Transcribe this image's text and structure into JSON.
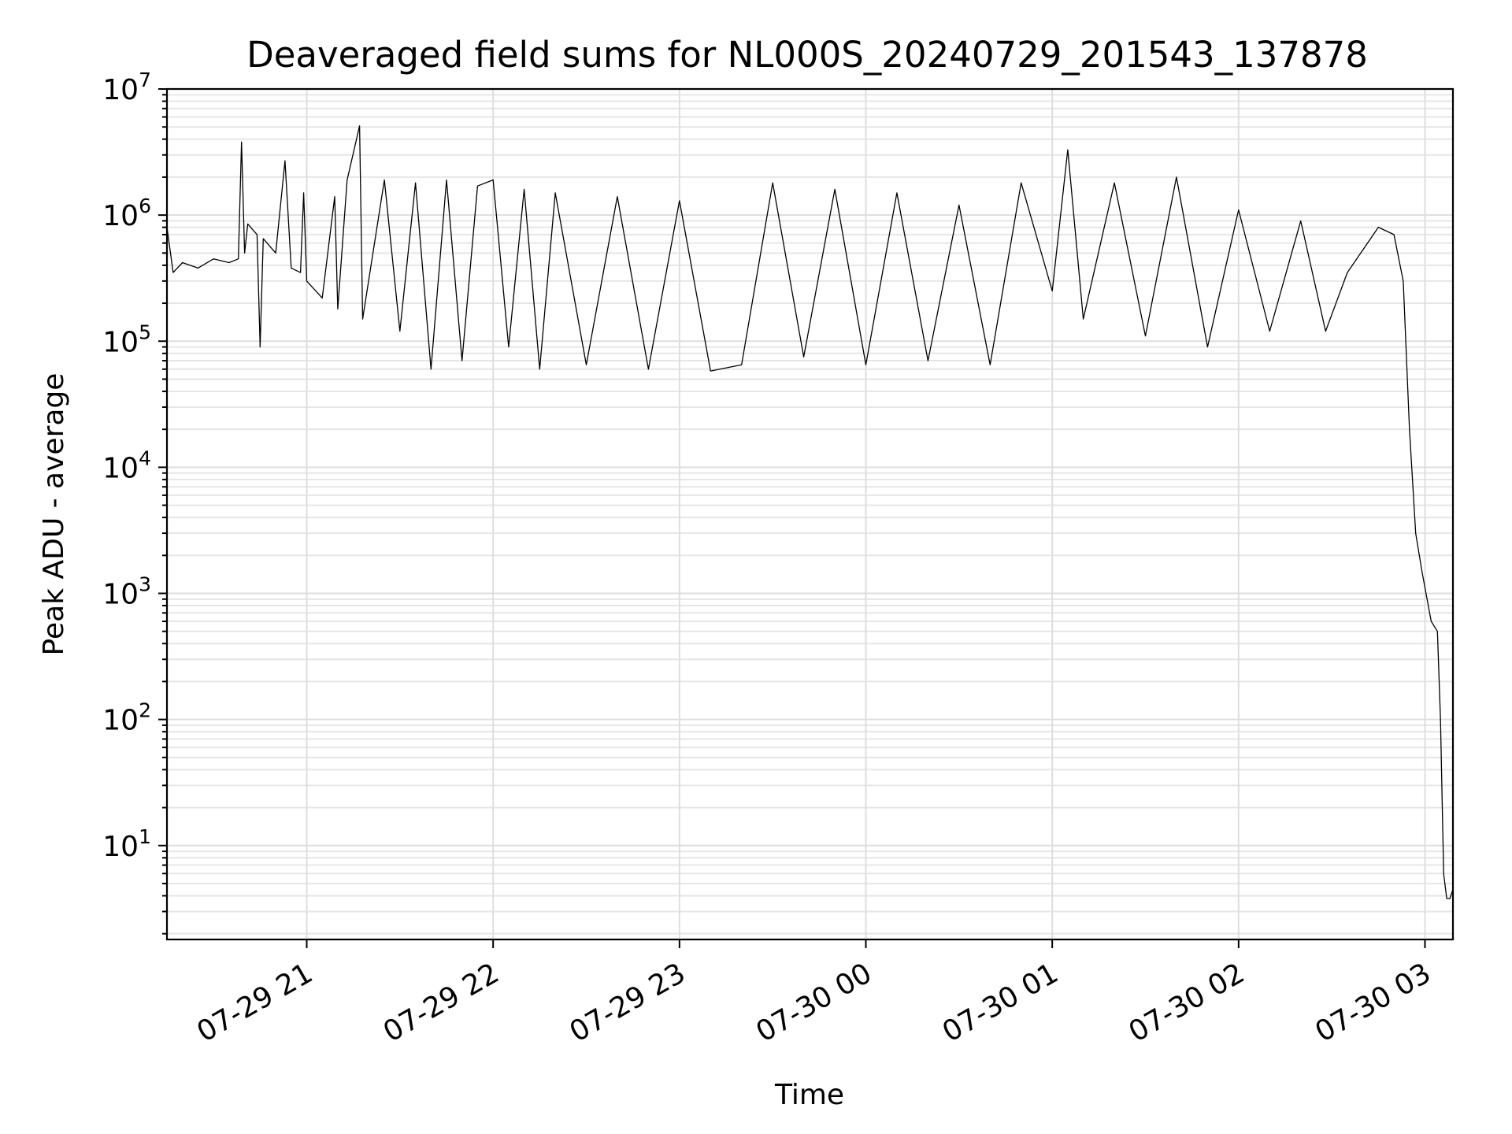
{
  "chart_data": {
    "type": "line",
    "title": "Deaveraged field sums for NL000S_20240729_201543_137878",
    "xlabel": "Time",
    "ylabel": "Peak ADU - average",
    "yscale": "log",
    "ylim": [
      1.8,
      10000000
    ],
    "xlim": [
      "2024-07-29 20:15",
      "2024-07-30 03:09"
    ],
    "grid": true,
    "x_ticks": [
      {
        "t": "2024-07-29 21:00",
        "label": "07-29 21"
      },
      {
        "t": "2024-07-29 22:00",
        "label": "07-29 22"
      },
      {
        "t": "2024-07-29 23:00",
        "label": "07-29 23"
      },
      {
        "t": "2024-07-30 00:00",
        "label": "07-30 00"
      },
      {
        "t": "2024-07-30 01:00",
        "label": "07-30 01"
      },
      {
        "t": "2024-07-30 02:00",
        "label": "07-30 02"
      },
      {
        "t": "2024-07-30 03:00",
        "label": "07-30 03"
      }
    ],
    "y_ticks": [
      {
        "value": 10,
        "base": "10",
        "exp": "1"
      },
      {
        "value": 100,
        "base": "10",
        "exp": "2"
      },
      {
        "value": 1000,
        "base": "10",
        "exp": "3"
      },
      {
        "value": 10000,
        "base": "10",
        "exp": "4"
      },
      {
        "value": 100000,
        "base": "10",
        "exp": "5"
      },
      {
        "value": 1000000,
        "base": "10",
        "exp": "6"
      },
      {
        "value": 10000000,
        "base": "10",
        "exp": "7"
      }
    ],
    "series": [
      {
        "color": "#000000",
        "points": [
          [
            "2024-07-29 20:15",
            800000
          ],
          [
            "2024-07-29 20:17",
            350000
          ],
          [
            "2024-07-29 20:20",
            420000
          ],
          [
            "2024-07-29 20:25",
            380000
          ],
          [
            "2024-07-29 20:30",
            450000
          ],
          [
            "2024-07-29 20:35",
            420000
          ],
          [
            "2024-07-29 20:38",
            450000
          ],
          [
            "2024-07-29 20:39",
            3800000
          ],
          [
            "2024-07-29 20:40",
            500000
          ],
          [
            "2024-07-29 20:41",
            850000
          ],
          [
            "2024-07-29 20:44",
            700000
          ],
          [
            "2024-07-29 20:45",
            90000
          ],
          [
            "2024-07-29 20:46",
            650000
          ],
          [
            "2024-07-29 20:50",
            500000
          ],
          [
            "2024-07-29 20:53",
            2700000
          ],
          [
            "2024-07-29 20:55",
            380000
          ],
          [
            "2024-07-29 20:58",
            350000
          ],
          [
            "2024-07-29 20:59",
            1500000
          ],
          [
            "2024-07-29 21:00",
            300000
          ],
          [
            "2024-07-29 21:05",
            220000
          ],
          [
            "2024-07-29 21:09",
            1400000
          ],
          [
            "2024-07-29 21:10",
            180000
          ],
          [
            "2024-07-29 21:13",
            1900000
          ],
          [
            "2024-07-29 21:17",
            5100000
          ],
          [
            "2024-07-29 21:18",
            150000
          ],
          [
            "2024-07-29 21:25",
            1900000
          ],
          [
            "2024-07-29 21:30",
            120000
          ],
          [
            "2024-07-29 21:35",
            1800000
          ],
          [
            "2024-07-29 21:40",
            60000
          ],
          [
            "2024-07-29 21:45",
            1900000
          ],
          [
            "2024-07-29 21:50",
            70000
          ],
          [
            "2024-07-29 21:55",
            1700000
          ],
          [
            "2024-07-29 22:00",
            1900000
          ],
          [
            "2024-07-29 22:05",
            90000
          ],
          [
            "2024-07-29 22:10",
            1600000
          ],
          [
            "2024-07-29 22:15",
            60000
          ],
          [
            "2024-07-29 22:20",
            1500000
          ],
          [
            "2024-07-29 22:30",
            65000
          ],
          [
            "2024-07-29 22:40",
            1400000
          ],
          [
            "2024-07-29 22:50",
            60000
          ],
          [
            "2024-07-29 23:00",
            1300000
          ],
          [
            "2024-07-29 23:10",
            58000
          ],
          [
            "2024-07-29 23:20",
            65000
          ],
          [
            "2024-07-29 23:30",
            1800000
          ],
          [
            "2024-07-29 23:40",
            75000
          ],
          [
            "2024-07-29 23:50",
            1600000
          ],
          [
            "2024-07-30 00:00",
            65000
          ],
          [
            "2024-07-30 00:10",
            1500000
          ],
          [
            "2024-07-30 00:20",
            70000
          ],
          [
            "2024-07-30 00:30",
            1200000
          ],
          [
            "2024-07-30 00:40",
            65000
          ],
          [
            "2024-07-30 00:50",
            1800000
          ],
          [
            "2024-07-30 01:00",
            250000
          ],
          [
            "2024-07-30 01:05",
            3300000
          ],
          [
            "2024-07-30 01:10",
            150000
          ],
          [
            "2024-07-30 01:20",
            1800000
          ],
          [
            "2024-07-30 01:30",
            110000
          ],
          [
            "2024-07-30 01:40",
            2000000
          ],
          [
            "2024-07-30 01:50",
            90000
          ],
          [
            "2024-07-30 02:00",
            1100000
          ],
          [
            "2024-07-30 02:10",
            120000
          ],
          [
            "2024-07-30 02:20",
            900000
          ],
          [
            "2024-07-30 02:28",
            120000
          ],
          [
            "2024-07-30 02:35",
            350000
          ],
          [
            "2024-07-30 02:45",
            800000
          ],
          [
            "2024-07-30 02:50",
            700000
          ],
          [
            "2024-07-30 02:53",
            300000
          ],
          [
            "2024-07-30 02:55",
            20000
          ],
          [
            "2024-07-30 02:57",
            3000
          ],
          [
            "2024-07-30 02:59",
            1500
          ],
          [
            "2024-07-30 03:02",
            600
          ],
          [
            "2024-07-30 03:04",
            500
          ],
          [
            "2024-07-30 03:05",
            100
          ],
          [
            "2024-07-30 03:06",
            6
          ],
          [
            "2024-07-30 03:07",
            3.8
          ],
          [
            "2024-07-30 03:08",
            3.8
          ],
          [
            "2024-07-30 03:09",
            4.5
          ]
        ]
      }
    ]
  }
}
